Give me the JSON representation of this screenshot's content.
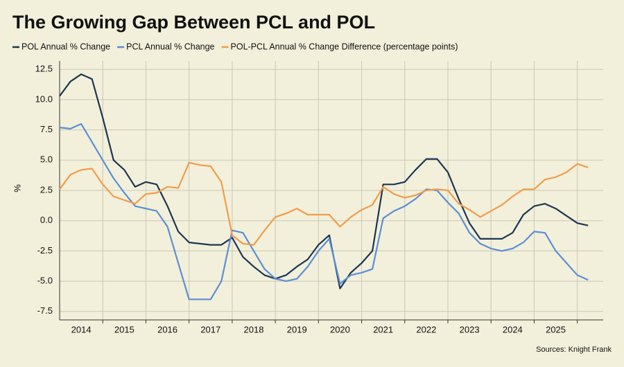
{
  "chart_data": {
    "type": "line",
    "title": "The Growing Gap Between PCL and POL",
    "y_label": "%",
    "source": "Sources: Knight Frank",
    "x": [
      2014,
      2014.25,
      2014.5,
      2014.75,
      2015,
      2015.25,
      2015.5,
      2015.75,
      2016,
      2016.25,
      2016.5,
      2016.75,
      2017,
      2017.25,
      2017.5,
      2017.75,
      2018,
      2018.25,
      2018.5,
      2018.75,
      2019,
      2019.25,
      2019.5,
      2019.75,
      2020,
      2020.25,
      2020.5,
      2020.75,
      2021,
      2021.25,
      2021.5,
      2021.75,
      2022,
      2022.25,
      2022.5,
      2022.75,
      2023,
      2023.25,
      2023.5,
      2023.75,
      2024,
      2024.25,
      2024.5,
      2024.75,
      2025,
      2025.25,
      2025.5,
      2025.75,
      2026,
      2026.25
    ],
    "series": [
      {
        "name": "POL Annual % Change",
        "color": "#1c3553",
        "values": [
          10.3,
          11.5,
          12.1,
          11.7,
          8.5,
          5.0,
          4.2,
          2.8,
          3.2,
          3.0,
          1.2,
          -0.9,
          -1.8,
          -1.9,
          -2.0,
          -2.0,
          -1.4,
          -3.0,
          -3.8,
          -4.5,
          -4.8,
          -4.5,
          -3.8,
          -3.2,
          -2.0,
          -1.2,
          -5.6,
          -4.3,
          -3.5,
          -2.5,
          3.0,
          3.0,
          3.2,
          4.2,
          5.1,
          5.1,
          4.0,
          1.8,
          -0.2,
          -1.5,
          -1.5,
          -1.5,
          -1.0,
          0.5,
          1.2,
          1.4,
          1.0,
          0.4,
          -0.2,
          -0.4
        ]
      },
      {
        "name": "PCL Annual % Change",
        "color": "#5b8ed6",
        "values": [
          7.7,
          7.6,
          8.0,
          6.5,
          5.0,
          3.5,
          2.3,
          1.2,
          1.0,
          0.8,
          -0.5,
          -3.5,
          -6.5,
          -6.5,
          -6.5,
          -5.0,
          -0.8,
          -1.0,
          -2.5,
          -4.0,
          -4.8,
          -5.0,
          -4.8,
          -3.8,
          -2.5,
          -1.5,
          -5.2,
          -4.5,
          -4.3,
          -4.0,
          0.2,
          0.8,
          1.2,
          1.8,
          2.6,
          2.5,
          1.5,
          0.6,
          -1.0,
          -1.9,
          -2.3,
          -2.5,
          -2.3,
          -1.8,
          -0.9,
          -1.0,
          -2.5,
          -3.5,
          -4.5,
          -4.9
        ]
      },
      {
        "name": "POL-PCL Annual % Change Difference (percentage points)",
        "color": "#f39b4a",
        "values": [
          2.6,
          3.8,
          4.2,
          4.3,
          3.0,
          2.0,
          1.7,
          1.4,
          2.2,
          2.3,
          2.8,
          2.7,
          4.8,
          4.6,
          4.5,
          3.2,
          -1.2,
          -1.9,
          -2.0,
          -0.8,
          0.3,
          0.6,
          1.0,
          0.5,
          0.5,
          0.5,
          -0.5,
          0.3,
          0.9,
          1.3,
          2.8,
          2.2,
          1.9,
          2.1,
          2.5,
          2.6,
          2.5,
          1.4,
          0.9,
          0.3,
          0.8,
          1.3,
          2.0,
          2.6,
          2.6,
          3.4,
          3.6,
          4.0,
          4.7,
          4.4
        ]
      }
    ],
    "xlim": [
      2014,
      2026.6
    ],
    "xticks": [
      {
        "value": 2014.5,
        "label": "2014"
      },
      {
        "value": 2015.5,
        "label": "2015"
      },
      {
        "value": 2016.5,
        "label": "2016"
      },
      {
        "value": 2017.5,
        "label": "2017"
      },
      {
        "value": 2018.5,
        "label": "2018"
      },
      {
        "value": 2019.5,
        "label": "2019"
      },
      {
        "value": 2020.5,
        "label": "2020"
      },
      {
        "value": 2021.5,
        "label": "2021"
      },
      {
        "value": 2022.5,
        "label": "2022"
      },
      {
        "value": 2023.5,
        "label": "2023"
      },
      {
        "value": 2024.5,
        "label": "2024"
      },
      {
        "value": 2025.5,
        "label": "2025"
      }
    ],
    "ylim": [
      -8.2,
      13.2
    ],
    "yticks": [
      12.5,
      {
        "value": 10,
        "label": "10.0"
      },
      7.5,
      {
        "value": 5,
        "label": "5.0"
      },
      2.5,
      {
        "value": 0,
        "label": "0.0"
      },
      -2.5,
      {
        "value": -5,
        "label": "-5.0"
      },
      -7.5
    ],
    "grid": true
  }
}
